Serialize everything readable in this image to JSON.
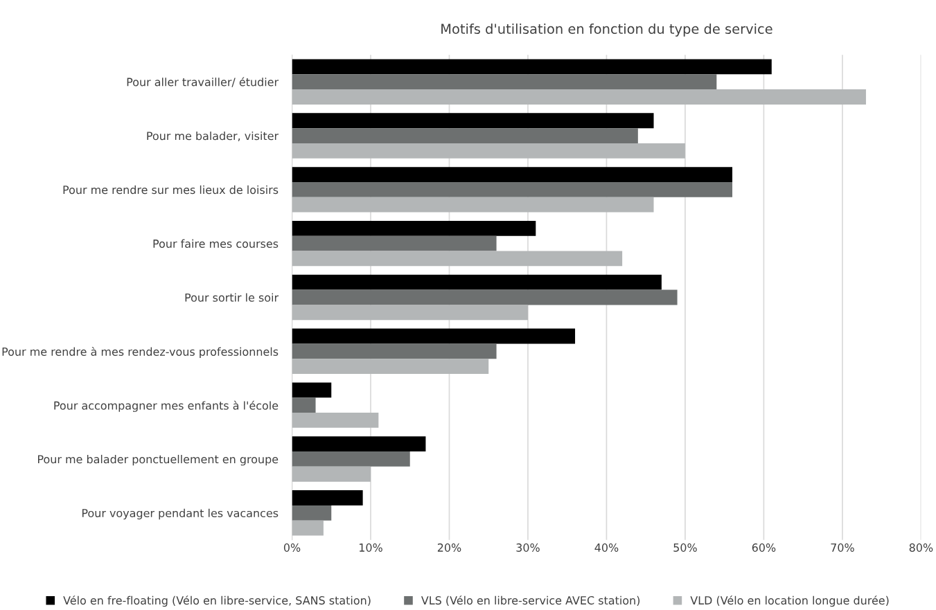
{
  "chart_data": {
    "type": "bar",
    "orientation": "horizontal",
    "title": "Motifs d'utilisation en fonction du type de service",
    "categories": [
      "Pour aller travailler/ étudier",
      "Pour me balader, visiter",
      "Pour me rendre sur mes lieux de loisirs",
      "Pour faire mes courses",
      "Pour sortir le soir",
      "Pour me rendre à mes rendez-vous professionnels",
      "Pour accompagner mes enfants à l'école",
      "Pour me balader ponctuellement en groupe",
      "Pour voyager pendant les vacances"
    ],
    "series": [
      {
        "name": "Vélo en fre-floating (Vélo en libre-service, SANS station)",
        "color": "#000000",
        "values": [
          61,
          46,
          56,
          31,
          47,
          36,
          5,
          17,
          9
        ]
      },
      {
        "name": "VLS (Vélo en libre-service AVEC station)",
        "color": "#6d7070",
        "values": [
          54,
          44,
          56,
          26,
          49,
          26,
          3,
          15,
          5
        ]
      },
      {
        "name": "VLD (Vélo en location longue durée)",
        "color": "#b3b6b7",
        "values": [
          73,
          50,
          46,
          42,
          30,
          25,
          11,
          10,
          4
        ]
      }
    ],
    "xlim": [
      0,
      80
    ],
    "xticks": [
      {
        "value": 0,
        "label": "0%"
      },
      {
        "value": 10,
        "label": "10%"
      },
      {
        "value": 20,
        "label": "20%"
      },
      {
        "value": 30,
        "label": "30%"
      },
      {
        "value": 40,
        "label": "40%"
      },
      {
        "value": 50,
        "label": "50%"
      },
      {
        "value": 60,
        "label": "60%"
      },
      {
        "value": 70,
        "label": "70%"
      },
      {
        "value": 80,
        "label": "80%"
      }
    ],
    "grid": "x",
    "legend": "bottom"
  }
}
